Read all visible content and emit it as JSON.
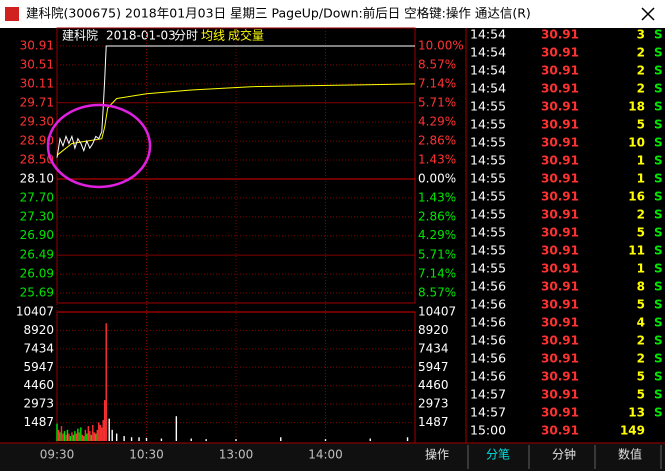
{
  "window": {
    "title": "建科院(300675) 2018年01月03日 星期三 PageUp/Down:前后日 空格键:操作 通达信(R)"
  },
  "chart": {
    "name": "建科院",
    "date": "2018-01-03",
    "mode": "分时",
    "avg_label": "均线",
    "volume_label": "成交量",
    "price_ticks": [
      30.91,
      30.51,
      30.11,
      29.71,
      {
        "value": 29.3,
        "label": "29.30"
      },
      {
        "value": 28.9,
        "label": "28.90"
      },
      {
        "value": 28.5,
        "label": "28.50"
      },
      {
        "value": 28.1,
        "label": "28.10"
      },
      {
        "value": 27.7,
        "label": "27.70"
      },
      {
        "value": 27.3,
        "label": "27.30"
      },
      {
        "value": 26.9,
        "label": "26.90"
      },
      26.49,
      26.09,
      25.69
    ],
    "pct_labels": [
      "10.00%",
      "8.57%",
      "7.14%",
      "5.71%",
      "4.29%",
      "2.86%",
      "1.43%",
      "0.00%",
      "1.43%",
      "2.86%",
      "4.29%",
      "5.71%",
      "7.14%",
      "8.57%"
    ],
    "volume_ticks": [
      10407,
      8920,
      7434,
      5947,
      4460,
      2973,
      1487
    ],
    "volume_lim": [
      0,
      10407
    ],
    "time_ticks": [
      {
        "value": 0,
        "label": "09:30"
      },
      {
        "value": 60,
        "label": "10:30"
      },
      {
        "value": 120,
        "label": "13:00"
      },
      {
        "value": 180,
        "label": "14:00"
      }
    ],
    "minute_lim": [
      0,
      240
    ],
    "price": {
      "color": "#ffffff",
      "minutes": [
        0,
        2,
        4,
        6,
        8,
        10,
        12,
        14,
        16,
        18,
        20,
        22,
        24,
        26,
        28,
        30,
        31,
        32,
        33,
        240
      ],
      "values": [
        28.55,
        28.95,
        28.8,
        29.0,
        28.85,
        29.0,
        28.75,
        28.95,
        28.85,
        28.7,
        28.9,
        28.75,
        28.85,
        29.0,
        28.95,
        29.1,
        29.6,
        30.2,
        30.91,
        30.91
      ]
    },
    "average": {
      "color": "#ffff00",
      "minutes": [
        0,
        10,
        30,
        32,
        34,
        40,
        60,
        90,
        130,
        240
      ],
      "values": [
        28.6,
        28.85,
        28.95,
        29.2,
        29.6,
        29.8,
        29.9,
        29.98,
        30.05,
        30.11
      ]
    },
    "volume": {
      "minutes": [
        0,
        1,
        2,
        3,
        4,
        5,
        6,
        7,
        8,
        9,
        10,
        11,
        12,
        13,
        14,
        15,
        16,
        17,
        18,
        19,
        20,
        21,
        22,
        23,
        24,
        25,
        26,
        27,
        28,
        29,
        30,
        31,
        32,
        33,
        35,
        37,
        40,
        45,
        50,
        55,
        60,
        70,
        80,
        90,
        100,
        120,
        150,
        180,
        210,
        235
      ],
      "values": [
        1400,
        900,
        700,
        1200,
        600,
        800,
        500,
        900,
        600,
        400,
        700,
        500,
        800,
        600,
        1000,
        700,
        1100,
        500,
        400,
        900,
        600,
        1200,
        800,
        500,
        1300,
        700,
        600,
        900,
        1500,
        1300,
        1100,
        1700,
        3300,
        9500,
        1800,
        900,
        600,
        400,
        300,
        300,
        250,
        200,
        2000,
        200,
        150,
        150,
        300,
        150,
        200,
        300
      ],
      "colors": [
        "#00e600",
        "#ff3232",
        "#00e600",
        "#ff3232",
        "#ff3232",
        "#00e600",
        "#ff3232",
        "#00e600",
        "#ff3232",
        "#00e600",
        "#ff3232",
        "#00e600",
        "#00e600",
        "#ff3232",
        "#00e600",
        "#ff3232",
        "#00e600",
        "#ff3232",
        "#00e600",
        "#ff3232",
        "#00e600",
        "#ff3232",
        "#ff3232",
        "#00e600",
        "#ff3232",
        "#ff3232",
        "#00e600",
        "#ff3232",
        "#ff3232",
        "#ff3232",
        "#ff3232",
        "#ff3232",
        "#ff3232",
        "#ff3232",
        "#ffffff",
        "#ffffff",
        "#ffffff",
        "#ffffff",
        "#ffffff",
        "#ffffff",
        "#ffffff",
        "#ffffff",
        "#ffffff",
        "#ffffff",
        "#ffffff",
        "#ffffff",
        "#ffffff",
        "#ffffff",
        "#ffffff",
        "#ffffff"
      ]
    }
  },
  "trades": {
    "rows": [
      [
        "14:54",
        "30.91",
        3,
        "S"
      ],
      [
        "14:54",
        "30.91",
        2,
        "S"
      ],
      [
        "14:54",
        "30.91",
        2,
        "S"
      ],
      [
        "14:54",
        "30.91",
        2,
        "S"
      ],
      [
        "14:55",
        "30.91",
        18,
        "S"
      ],
      [
        "14:55",
        "30.91",
        5,
        "S"
      ],
      [
        "14:55",
        "30.91",
        10,
        "S"
      ],
      [
        "14:55",
        "30.91",
        1,
        "S"
      ],
      [
        "14:55",
        "30.91",
        1,
        "S"
      ],
      [
        "14:55",
        "30.91",
        16,
        "S"
      ],
      [
        "14:55",
        "30.91",
        2,
        "S"
      ],
      [
        "14:55",
        "30.91",
        5,
        "S"
      ],
      [
        "14:55",
        "30.91",
        11,
        "S"
      ],
      [
        "14:55",
        "30.91",
        1,
        "S"
      ],
      [
        "14:56",
        "30.91",
        8,
        "S"
      ],
      [
        "14:56",
        "30.91",
        5,
        "S"
      ],
      [
        "14:56",
        "30.91",
        4,
        "S"
      ],
      [
        "14:56",
        "30.91",
        2,
        "S"
      ],
      [
        "14:56",
        "30.91",
        2,
        "S"
      ],
      [
        "14:56",
        "30.91",
        5,
        "S"
      ],
      [
        "14:57",
        "30.91",
        5,
        "S"
      ],
      [
        "14:57",
        "30.91",
        13,
        "S"
      ],
      [
        "15:00",
        "30.91",
        149
      ]
    ]
  },
  "tabs": [
    "操作",
    "分笔",
    "分钟",
    "数值"
  ]
}
